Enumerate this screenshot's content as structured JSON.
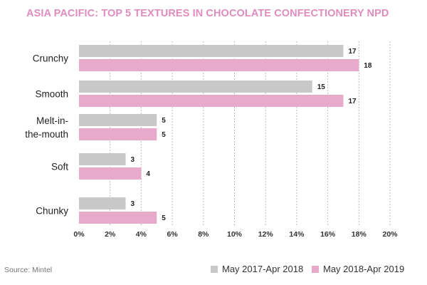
{
  "chart_data": {
    "type": "bar",
    "orientation": "horizontal",
    "title": "ASIA PACIFIC: TOP 5 TEXTURES IN CHOCOLATE CONFECTIONERY NPD",
    "categories": [
      "Crunchy",
      "Smooth",
      "Melt-in-the-mouth",
      "Soft",
      "Chunky"
    ],
    "category_lines": [
      [
        "Crunchy"
      ],
      [
        "Smooth"
      ],
      [
        "Melt-in-",
        "the-mouth"
      ],
      [
        "Soft"
      ],
      [
        "Chunky"
      ]
    ],
    "series": [
      {
        "name": "May 2017-Apr 2018",
        "color": "#c8c8c8",
        "values": [
          17,
          15,
          5,
          3,
          3
        ]
      },
      {
        "name": "May 2018-Apr 2019",
        "color": "#e7aacb",
        "values": [
          18,
          17,
          5,
          4,
          5
        ]
      }
    ],
    "xlim": [
      0,
      20
    ],
    "xticks": [
      "0%",
      "2%",
      "4%",
      "6%",
      "8%",
      "10%",
      "12%",
      "14%",
      "16%",
      "18%",
      "20%"
    ],
    "xlabel": "",
    "ylabel": "",
    "grid": "vertical dashed",
    "legend": "bottom-right",
    "title_color": "#e08cbf"
  },
  "source": "Source: Mintel"
}
